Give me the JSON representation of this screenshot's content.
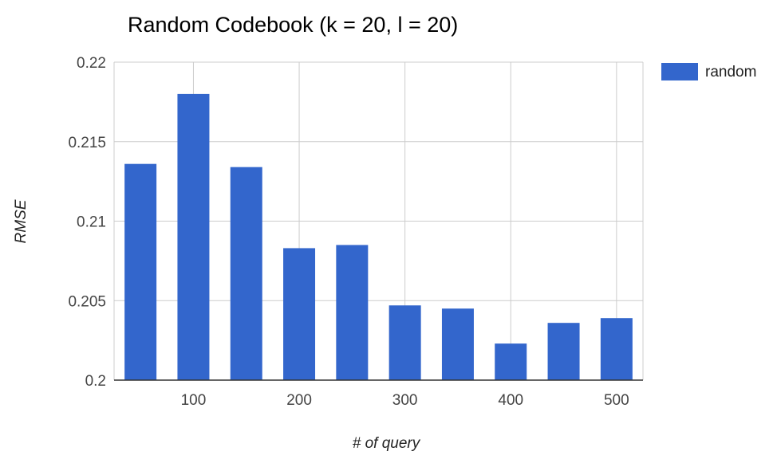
{
  "chart_data": {
    "type": "bar",
    "title": "Random Codebook (k = 20, l = 20)",
    "xlabel": "# of query",
    "ylabel": "RMSE",
    "x": [
      50,
      100,
      150,
      200,
      250,
      300,
      350,
      400,
      450,
      500
    ],
    "x_tick_labels": [
      "100",
      "200",
      "300",
      "400",
      "500"
    ],
    "x_ticks": [
      100,
      200,
      300,
      400,
      500
    ],
    "xlim": [
      25,
      525
    ],
    "y_tick_labels": [
      "0.22",
      "0.215",
      "0.21",
      "0.205",
      "0.2"
    ],
    "y_ticks": [
      0.22,
      0.215,
      0.21,
      0.205,
      0.2
    ],
    "ylim": [
      0.2,
      0.22
    ],
    "grid": true,
    "legend_position": "right",
    "series": [
      {
        "name": "random",
        "color": "#3366cc",
        "values": [
          0.2136,
          0.218,
          0.2134,
          0.2083,
          0.2085,
          0.2047,
          0.2045,
          0.2023,
          0.2036,
          0.2039
        ]
      }
    ]
  }
}
